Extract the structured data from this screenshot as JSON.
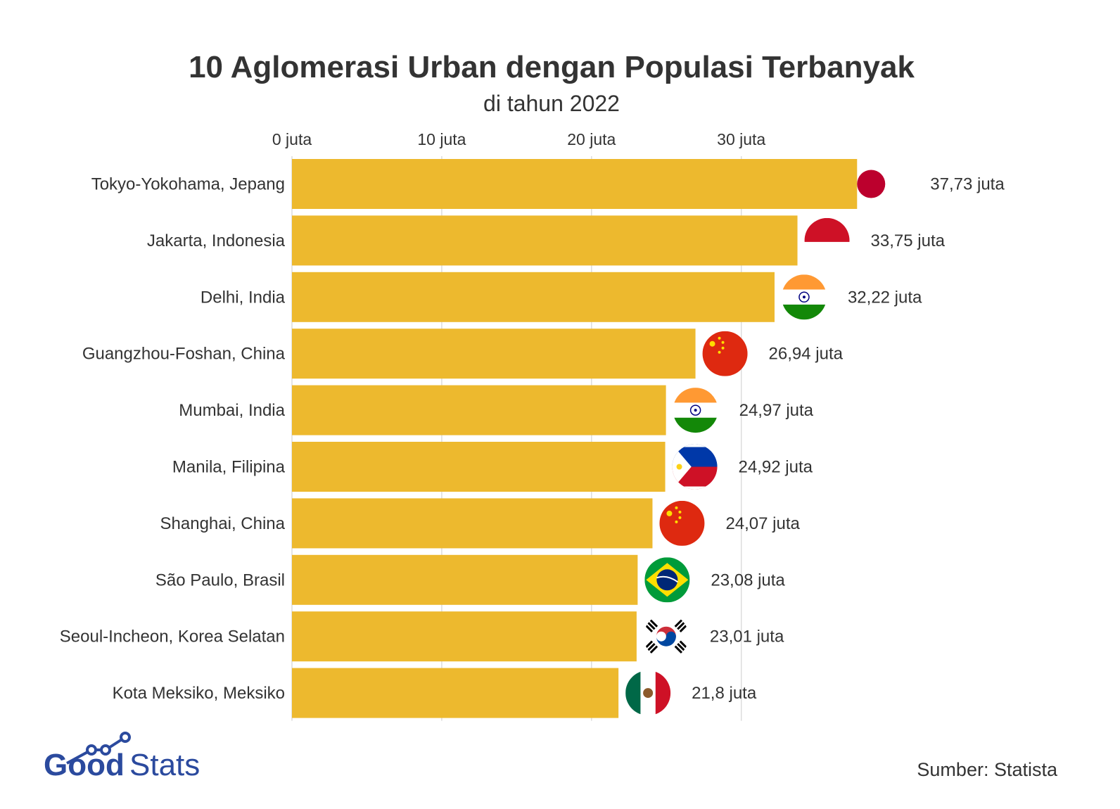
{
  "chart_data": {
    "type": "bar",
    "orientation": "horizontal",
    "title": "10 Aglomerasi Urban dengan Populasi Terbanyak",
    "subtitle": "di tahun 2022",
    "unit": "juta",
    "xlim": [
      0,
      40
    ],
    "ticks": [
      0,
      10,
      20,
      30
    ],
    "tick_labels": [
      "0 juta",
      "10 juta",
      "20 juta",
      "30 juta"
    ],
    "grid": true,
    "bar_color": "#EDB92E",
    "categories": [
      "Tokyo-Yokohama, Jepang",
      "Jakarta, Indonesia",
      "Delhi, India",
      "Guangzhou-Foshan, China",
      "Mumbai, India",
      "Manila, Filipina",
      "Shanghai, China",
      "São Paulo, Brasil",
      "Seoul-Incheon, Korea Selatan",
      "Kota Meksiko, Meksiko"
    ],
    "values": [
      37.73,
      33.75,
      32.22,
      26.94,
      24.97,
      24.92,
      24.07,
      23.08,
      23.01,
      21.8
    ],
    "value_labels": [
      "37,73 juta",
      "33,75 juta",
      "32,22 juta",
      "26,94 juta",
      "24,97 juta",
      "24,92 juta",
      "24,07 juta",
      "23,08 juta",
      "23,01 juta",
      "21,8 juta"
    ],
    "flags": [
      "japan-flag-icon",
      "indonesia-flag-icon",
      "india-flag-icon",
      "china-flag-icon",
      "india-flag-icon",
      "philippines-flag-icon",
      "china-flag-icon",
      "brazil-flag-icon",
      "south-korea-flag-icon",
      "mexico-flag-icon"
    ]
  },
  "source": "Sumber: Statista",
  "logo": {
    "text_bold": "Good",
    "text_light": "Stats",
    "color": "#2B4A9E"
  }
}
